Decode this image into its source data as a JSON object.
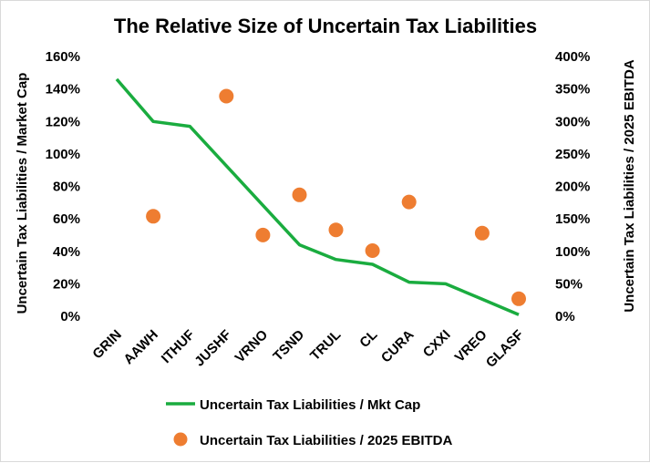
{
  "chart_data": {
    "type": "line",
    "title": "The Relative Size of Uncertain Tax Liabilities",
    "categories": [
      "GRIN",
      "AAWH",
      "ITHUF",
      "JUSHF",
      "VRNO",
      "TSND",
      "TRUL",
      "CL",
      "CURA",
      "CXXI",
      "VREO",
      "GLASF"
    ],
    "y_left": {
      "label": "Uncertain Tax Liabilities / Market Cap",
      "range": [
        0,
        160
      ],
      "ticks": [
        "160%",
        "140%",
        "120%",
        "100%",
        "80%",
        "60%",
        "40%",
        "20%",
        "0%"
      ]
    },
    "y_right": {
      "label": "Uncertain Tax Liabilities / 2025 EBITDA",
      "range": [
        0,
        400
      ],
      "ticks": [
        "400%",
        "350%",
        "300%",
        "250%",
        "200%",
        "150%",
        "100%",
        "50%",
        "0%"
      ]
    },
    "series": [
      {
        "name": "Uncertain Tax Liabilities / Mkt Cap",
        "type": "line",
        "axis": "left",
        "color": "#1aac3f",
        "values": [
          146,
          120,
          117,
          null,
          null,
          44,
          35,
          32,
          21,
          20,
          null,
          1
        ]
      },
      {
        "name": "Uncertain Tax Liabilities / 2025 EBITDA",
        "type": "scatter",
        "axis": "right",
        "color": "#ee7d31",
        "values": [
          null,
          154,
          null,
          339,
          125,
          187,
          133,
          101,
          176,
          null,
          128,
          27
        ]
      }
    ],
    "grid": false,
    "legend_position": "bottom"
  }
}
